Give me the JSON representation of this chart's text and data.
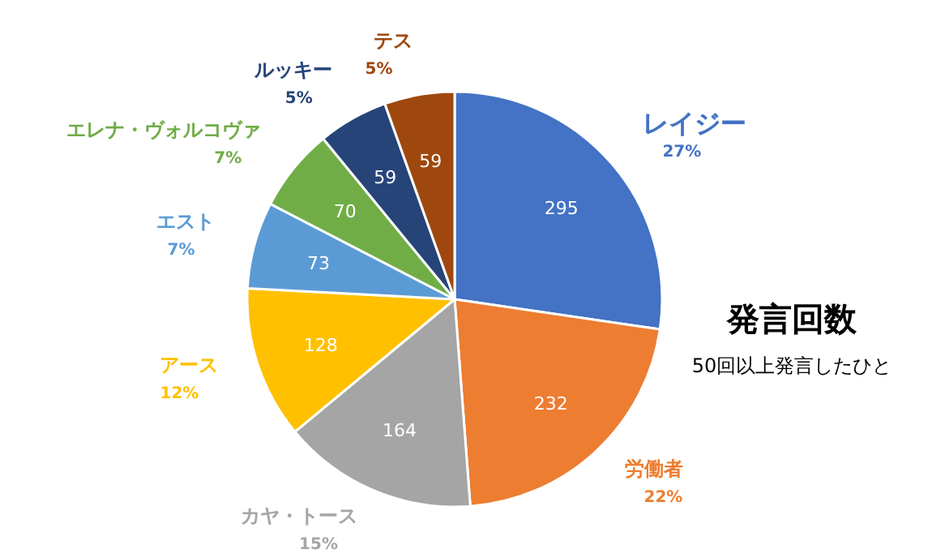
{
  "chart_data": {
    "type": "pie",
    "title": "発言回数",
    "subtitle": "50回以上発言したひと",
    "categories": [
      "レイジー",
      "労働者",
      "カヤ・トース",
      "アース",
      "エスト",
      "エレナ・ヴォルコヴァ",
      "ルッキー",
      "テス"
    ],
    "values": [
      295,
      232,
      164,
      128,
      73,
      70,
      59,
      59
    ],
    "colors": [
      "#4472c4",
      "#ed7d31",
      "#a5a5a5",
      "#ffc000",
      "#5b9bd5",
      "#70ad47",
      "#264478",
      "#9e480e"
    ],
    "data_labels": true,
    "annotations": [
      {
        "text": "27%",
        "x": "レイジー"
      },
      {
        "text": "22%",
        "x": "労働者"
      },
      {
        "text": "15%",
        "x": "カヤ・トース"
      },
      {
        "text": "12%",
        "x": "アース"
      },
      {
        "text": "7%",
        "x": "エスト"
      },
      {
        "text": "7%",
        "x": "エレナ・ヴォルコヴァ"
      },
      {
        "text": "5%",
        "x": "ルッキー"
      },
      {
        "text": "5%",
        "x": "テス"
      }
    ]
  }
}
